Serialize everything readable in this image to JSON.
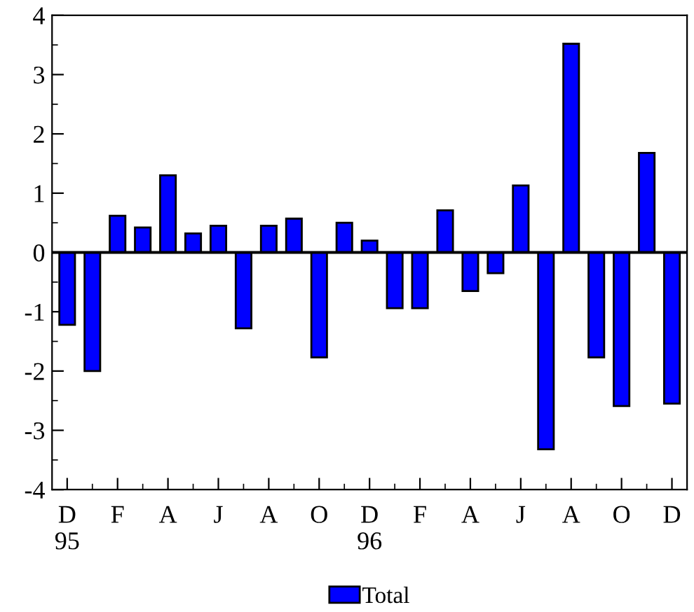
{
  "chart_data": {
    "type": "bar",
    "categories": [
      "D\n95",
      null,
      "F",
      null,
      "A",
      null,
      "J",
      null,
      "A",
      null,
      "O",
      null,
      "D\n96",
      null,
      "F",
      null,
      "A",
      null,
      "J",
      null,
      "A",
      null,
      "O",
      null,
      "D"
    ],
    "series": [
      {
        "name": "Total",
        "color": "#0000ff",
        "values": [
          -1.22,
          -2.0,
          0.62,
          0.42,
          1.3,
          0.32,
          0.45,
          -1.28,
          0.45,
          0.57,
          -1.77,
          0.5,
          0.2,
          -0.94,
          -0.94,
          0.71,
          -0.65,
          -0.35,
          1.13,
          -3.32,
          3.52,
          -1.77,
          -2.59,
          1.68,
          -2.55
        ]
      }
    ],
    "ylim": [
      -4,
      4
    ],
    "yticks": [
      -4,
      -3,
      -2,
      -1,
      0,
      1,
      2,
      3,
      4
    ],
    "ref_lines": [
      {
        "axis": "y",
        "value": 0,
        "color": "#000000"
      }
    ],
    "legend": "bottom"
  }
}
